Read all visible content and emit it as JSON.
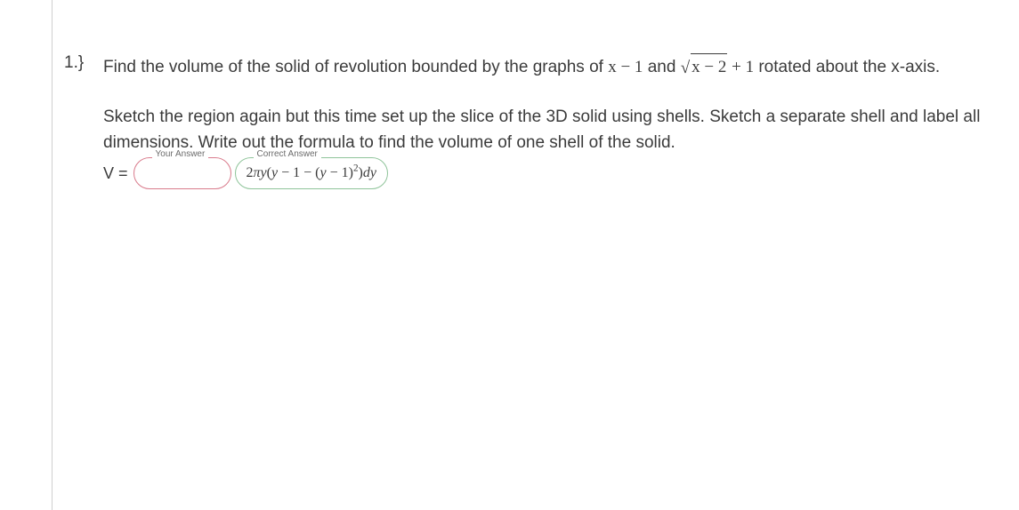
{
  "question": {
    "number": "1.}",
    "text_prefix": "Find the volume of the solid of revolution bounded by the graphs of ",
    "expr1_a": "x",
    "expr1_op": " − ",
    "expr1_b": "1",
    "text_and": " and ",
    "sqrt_inner_a": "x",
    "sqrt_inner_op": " − ",
    "sqrt_inner_b": "2",
    "expr2_plus": " + ",
    "expr2_c": "1",
    "text_suffix": " rotated about the x-axis."
  },
  "para2": "Sketch the region again but this time set up the slice of the 3D solid using shells. Sketch a separate shell and label all dimensions. Write out the formula to find the volume of one shell of the solid.",
  "labels": {
    "your_answer": "Your Answer",
    "correct_answer": "Correct Answer"
  },
  "equation": {
    "lhs": "V =",
    "correct_prefix": "2",
    "pi": "π",
    "y": "y",
    "open": "(",
    "part_y": "y",
    "minus1a": " − 1 − ",
    "open2": "(",
    "part_y2": "y",
    "minus1b": " − 1",
    "close2": ")",
    "exp": "2",
    "close": ")",
    "dy": "dy"
  },
  "colors": {
    "text": "#3b3b3b",
    "border_left": "#d0d0d0",
    "wrong_border": "#d97b8c",
    "correct_border": "#8fc49a",
    "label_gray": "#6b6b6b",
    "bg": "#ffffff"
  }
}
